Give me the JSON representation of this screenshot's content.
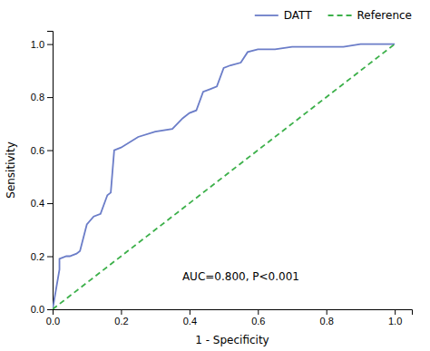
{
  "chart_data": {
    "type": "line",
    "xlabel": "1 - Specificity",
    "ylabel": "Sensitivity",
    "series": [
      {
        "name": "DATT",
        "color": "#6B7DC8",
        "line_style": "solid",
        "x": [
          0.0,
          0.02,
          0.02,
          0.04,
          0.05,
          0.07,
          0.08,
          0.1,
          0.12,
          0.14,
          0.16,
          0.17,
          0.18,
          0.2,
          0.25,
          0.3,
          0.35,
          0.38,
          0.4,
          0.42,
          0.44,
          0.46,
          0.48,
          0.5,
          0.52,
          0.55,
          0.57,
          0.6,
          0.65,
          0.7,
          0.75,
          0.8,
          0.85,
          0.9,
          0.95,
          1.0
        ],
        "values": [
          0.0,
          0.15,
          0.19,
          0.2,
          0.2,
          0.21,
          0.22,
          0.32,
          0.35,
          0.36,
          0.43,
          0.44,
          0.6,
          0.61,
          0.65,
          0.67,
          0.68,
          0.72,
          0.74,
          0.75,
          0.82,
          0.83,
          0.84,
          0.91,
          0.92,
          0.93,
          0.97,
          0.98,
          0.98,
          0.99,
          0.99,
          0.99,
          0.99,
          1.0,
          1.0,
          1.0
        ]
      },
      {
        "name": "Reference",
        "color": "#3CB04A",
        "line_style": "dashed",
        "x": [
          0.0,
          1.0
        ],
        "values": [
          0.0,
          1.0
        ]
      }
    ],
    "xlim": [
      0.0,
      1.05
    ],
    "ylim": [
      0.0,
      1.05
    ],
    "xticks": [
      {
        "value": 0.0,
        "label": "0.0"
      },
      0.2,
      0.4,
      0.6,
      0.8,
      {
        "value": 1.0,
        "label": "1.0"
      }
    ],
    "yticks": [
      {
        "value": 0.0,
        "label": "0.0"
      },
      0.2,
      0.4,
      0.6,
      0.8,
      {
        "value": 1.0,
        "label": "1.0"
      }
    ],
    "annotations": [
      {
        "text": "AUC=0.800, P<0.001",
        "x": 0.55,
        "y": 0.1
      }
    ],
    "legend": "upper right",
    "grid": false
  }
}
